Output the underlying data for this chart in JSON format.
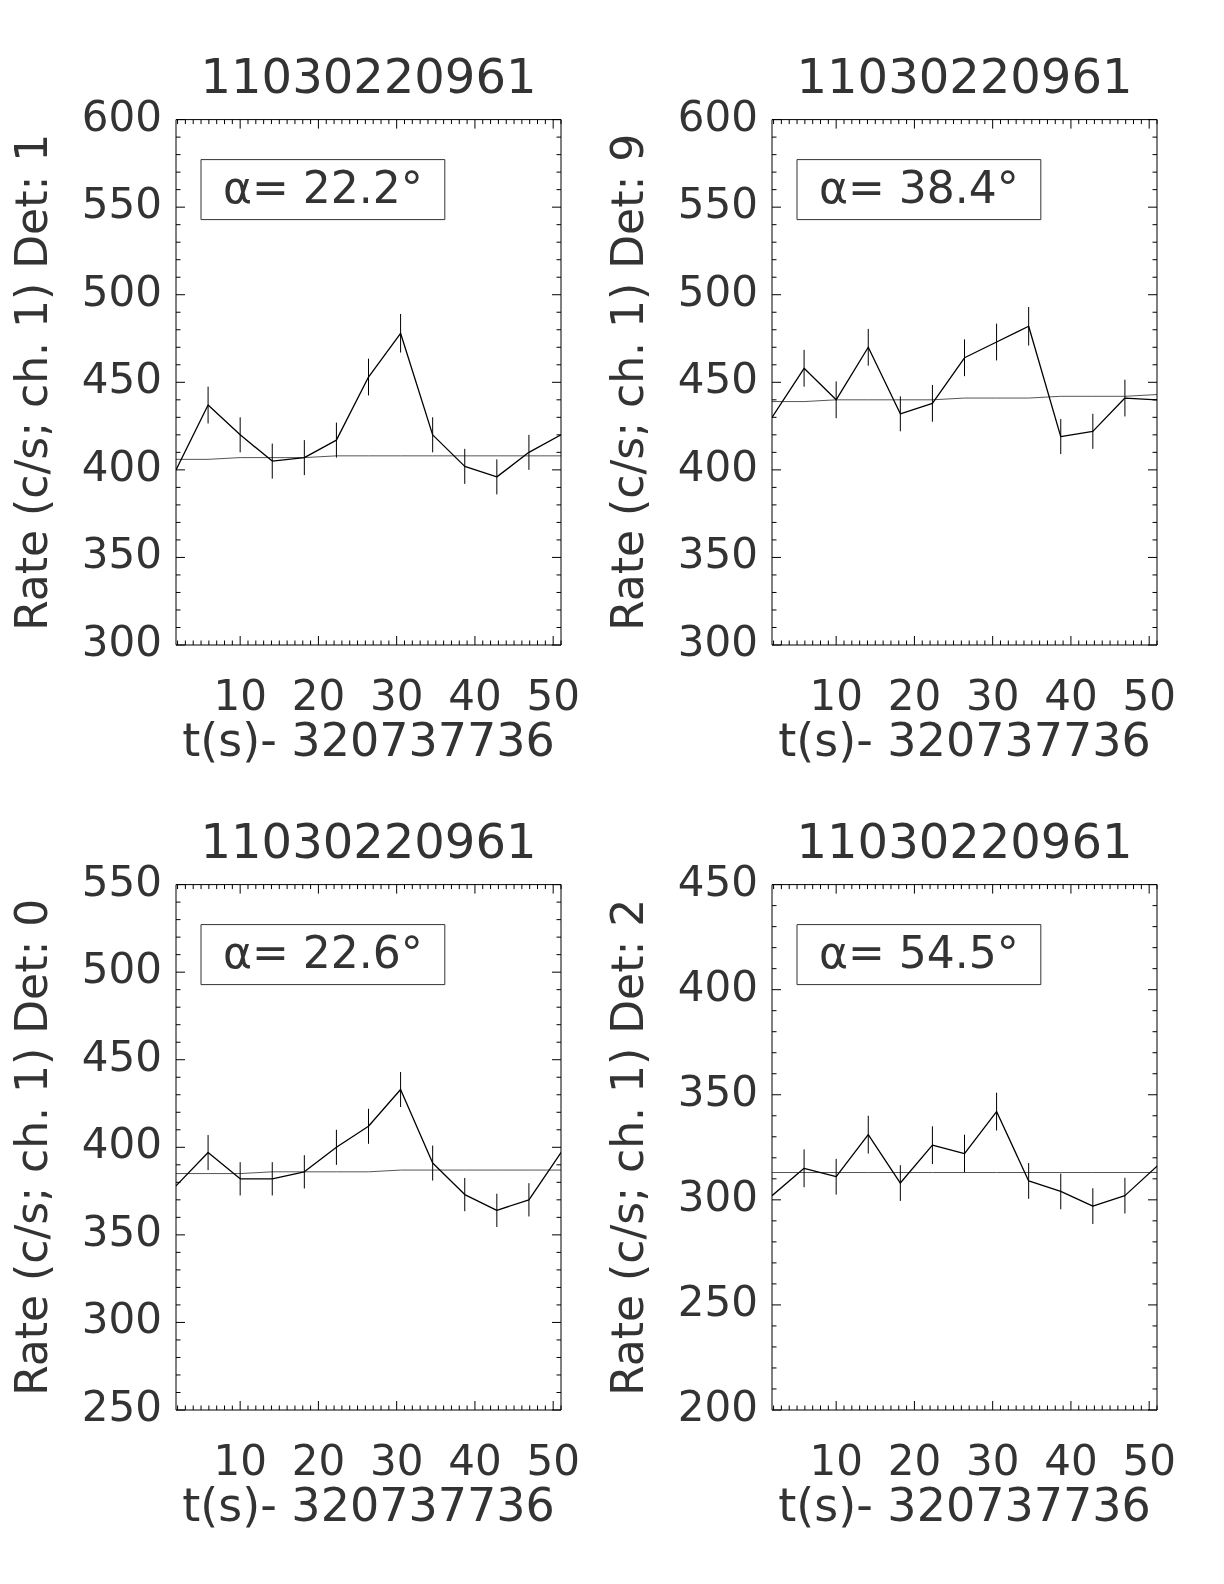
{
  "chart_data": [
    {
      "type": "line",
      "title": "11030220961",
      "xlabel": "t(s)- 320737736",
      "ylabel": "Rate (c/s; ch. 1) Det: 1",
      "annotations": [
        "α= 22.2°"
      ],
      "x": [
        1.8,
        5.9,
        10.0,
        14.1,
        18.2,
        22.3,
        26.4,
        30.5,
        34.6,
        38.7,
        42.8,
        46.9,
        51.0
      ],
      "xlim": [
        1.8,
        51.0
      ],
      "xticks": [
        {
          "value": 2,
          "label": null
        },
        {
          "value": 3,
          "label": null
        },
        {
          "value": 4,
          "label": null
        },
        {
          "value": 5,
          "label": null
        },
        {
          "value": 6,
          "label": null
        },
        {
          "value": 7,
          "label": null
        },
        {
          "value": 8,
          "label": null
        },
        {
          "value": 9,
          "label": null
        },
        10,
        {
          "value": 11,
          "label": null
        },
        {
          "value": 12,
          "label": null
        },
        {
          "value": 13,
          "label": null
        },
        {
          "value": 14,
          "label": null
        },
        {
          "value": 15,
          "label": null
        },
        {
          "value": 16,
          "label": null
        },
        {
          "value": 17,
          "label": null
        },
        {
          "value": 18,
          "label": null
        },
        {
          "value": 19,
          "label": null
        },
        20,
        {
          "value": 21,
          "label": null
        },
        {
          "value": 22,
          "label": null
        },
        {
          "value": 23,
          "label": null
        },
        {
          "value": 24,
          "label": null
        },
        {
          "value": 25,
          "label": null
        },
        {
          "value": 26,
          "label": null
        },
        {
          "value": 27,
          "label": null
        },
        {
          "value": 28,
          "label": null
        },
        {
          "value": 29,
          "label": null
        },
        30,
        {
          "value": 31,
          "label": null
        },
        {
          "value": 32,
          "label": null
        },
        {
          "value": 33,
          "label": null
        },
        {
          "value": 34,
          "label": null
        },
        {
          "value": 35,
          "label": null
        },
        {
          "value": 36,
          "label": null
        },
        {
          "value": 37,
          "label": null
        },
        {
          "value": 38,
          "label": null
        },
        {
          "value": 39,
          "label": null
        },
        40,
        {
          "value": 41,
          "label": null
        },
        {
          "value": 42,
          "label": null
        },
        {
          "value": 43,
          "label": null
        },
        {
          "value": 44,
          "label": null
        },
        {
          "value": 45,
          "label": null
        },
        {
          "value": 46,
          "label": null
        },
        {
          "value": 47,
          "label": null
        },
        {
          "value": 48,
          "label": null
        },
        {
          "value": 49,
          "label": null
        },
        50,
        {
          "value": 51,
          "label": null
        }
      ],
      "ylim": [
        300,
        600
      ],
      "yticks": [
        300,
        {
          "value": 310,
          "label": null
        },
        {
          "value": 320,
          "label": null
        },
        {
          "value": 330,
          "label": null
        },
        {
          "value": 340,
          "label": null
        },
        350,
        {
          "value": 360,
          "label": null
        },
        {
          "value": 370,
          "label": null
        },
        {
          "value": 380,
          "label": null
        },
        {
          "value": 390,
          "label": null
        },
        400,
        {
          "value": 410,
          "label": null
        },
        {
          "value": 420,
          "label": null
        },
        {
          "value": 430,
          "label": null
        },
        {
          "value": 440,
          "label": null
        },
        450,
        {
          "value": 460,
          "label": null
        },
        {
          "value": 470,
          "label": null
        },
        {
          "value": 480,
          "label": null
        },
        {
          "value": 490,
          "label": null
        },
        500,
        {
          "value": 510,
          "label": null
        },
        {
          "value": 520,
          "label": null
        },
        {
          "value": 530,
          "label": null
        },
        {
          "value": 540,
          "label": null
        },
        550,
        {
          "value": 560,
          "label": null
        },
        {
          "value": 570,
          "label": null
        },
        {
          "value": 580,
          "label": null
        },
        {
          "value": 590,
          "label": null
        },
        600
      ],
      "series": [
        {
          "color": "#000000",
          "values": [
            400,
            437,
            420,
            405,
            407,
            417,
            453,
            478,
            420,
            402,
            396,
            410,
            420
          ],
          "errors": [
            null,
            10.5,
            10,
            10,
            10,
            10,
            10.5,
            11,
            10,
            10,
            10,
            10,
            null
          ]
        },
        {
          "color": "#555555",
          "values": [
            406,
            406,
            407,
            407,
            407,
            408,
            408,
            408,
            408,
            408,
            408,
            408,
            408
          ]
        }
      ]
    },
    {
      "type": "line",
      "title": "11030220961",
      "xlabel": "t(s)- 320737736",
      "ylabel": "Rate (c/s; ch. 1) Det: 9",
      "annotations": [
        "α= 38.4°"
      ],
      "x": [
        1.8,
        5.9,
        10.0,
        14.1,
        18.2,
        22.3,
        26.4,
        30.5,
        34.6,
        38.7,
        42.8,
        46.9,
        51.0
      ],
      "xlim": [
        1.8,
        51.0
      ],
      "xticks": [
        {
          "value": 2,
          "label": null
        },
        {
          "value": 3,
          "label": null
        },
        {
          "value": 4,
          "label": null
        },
        {
          "value": 5,
          "label": null
        },
        {
          "value": 6,
          "label": null
        },
        {
          "value": 7,
          "label": null
        },
        {
          "value": 8,
          "label": null
        },
        {
          "value": 9,
          "label": null
        },
        10,
        {
          "value": 11,
          "label": null
        },
        {
          "value": 12,
          "label": null
        },
        {
          "value": 13,
          "label": null
        },
        {
          "value": 14,
          "label": null
        },
        {
          "value": 15,
          "label": null
        },
        {
          "value": 16,
          "label": null
        },
        {
          "value": 17,
          "label": null
        },
        {
          "value": 18,
          "label": null
        },
        {
          "value": 19,
          "label": null
        },
        20,
        {
          "value": 21,
          "label": null
        },
        {
          "value": 22,
          "label": null
        },
        {
          "value": 23,
          "label": null
        },
        {
          "value": 24,
          "label": null
        },
        {
          "value": 25,
          "label": null
        },
        {
          "value": 26,
          "label": null
        },
        {
          "value": 27,
          "label": null
        },
        {
          "value": 28,
          "label": null
        },
        {
          "value": 29,
          "label": null
        },
        30,
        {
          "value": 31,
          "label": null
        },
        {
          "value": 32,
          "label": null
        },
        {
          "value": 33,
          "label": null
        },
        {
          "value": 34,
          "label": null
        },
        {
          "value": 35,
          "label": null
        },
        {
          "value": 36,
          "label": null
        },
        {
          "value": 37,
          "label": null
        },
        {
          "value": 38,
          "label": null
        },
        {
          "value": 39,
          "label": null
        },
        40,
        {
          "value": 41,
          "label": null
        },
        {
          "value": 42,
          "label": null
        },
        {
          "value": 43,
          "label": null
        },
        {
          "value": 44,
          "label": null
        },
        {
          "value": 45,
          "label": null
        },
        {
          "value": 46,
          "label": null
        },
        {
          "value": 47,
          "label": null
        },
        {
          "value": 48,
          "label": null
        },
        {
          "value": 49,
          "label": null
        },
        50,
        {
          "value": 51,
          "label": null
        }
      ],
      "ylim": [
        300,
        600
      ],
      "yticks": [
        300,
        {
          "value": 310,
          "label": null
        },
        {
          "value": 320,
          "label": null
        },
        {
          "value": 330,
          "label": null
        },
        {
          "value": 340,
          "label": null
        },
        350,
        {
          "value": 360,
          "label": null
        },
        {
          "value": 370,
          "label": null
        },
        {
          "value": 380,
          "label": null
        },
        {
          "value": 390,
          "label": null
        },
        400,
        {
          "value": 410,
          "label": null
        },
        {
          "value": 420,
          "label": null
        },
        {
          "value": 430,
          "label": null
        },
        {
          "value": 440,
          "label": null
        },
        450,
        {
          "value": 460,
          "label": null
        },
        {
          "value": 470,
          "label": null
        },
        {
          "value": 480,
          "label": null
        },
        {
          "value": 490,
          "label": null
        },
        500,
        {
          "value": 510,
          "label": null
        },
        {
          "value": 520,
          "label": null
        },
        {
          "value": 530,
          "label": null
        },
        {
          "value": 540,
          "label": null
        },
        550,
        {
          "value": 560,
          "label": null
        },
        {
          "value": 570,
          "label": null
        },
        {
          "value": 580,
          "label": null
        },
        {
          "value": 590,
          "label": null
        },
        600
      ],
      "series": [
        {
          "color": "#000000",
          "values": [
            430,
            458,
            440,
            470,
            432,
            438,
            464,
            473,
            482,
            419,
            422,
            441,
            440
          ],
          "errors": [
            null,
            10.5,
            10.5,
            10.5,
            10,
            10.5,
            10.5,
            10.5,
            11,
            10,
            10,
            10.5,
            null
          ]
        },
        {
          "color": "#555555",
          "values": [
            439,
            439,
            440,
            440,
            440,
            440,
            441,
            441,
            441,
            442,
            442,
            442,
            443
          ]
        }
      ]
    },
    {
      "type": "line",
      "title": "11030220961",
      "xlabel": "t(s)- 320737736",
      "ylabel": "Rate (c/s; ch. 1) Det: 0",
      "annotations": [
        "α= 22.6°"
      ],
      "x": [
        1.8,
        5.9,
        10.0,
        14.1,
        18.2,
        22.3,
        26.4,
        30.5,
        34.6,
        38.7,
        42.8,
        46.9,
        51.0
      ],
      "xlim": [
        1.8,
        51.0
      ],
      "xticks": [
        {
          "value": 2,
          "label": null
        },
        {
          "value": 3,
          "label": null
        },
        {
          "value": 4,
          "label": null
        },
        {
          "value": 5,
          "label": null
        },
        {
          "value": 6,
          "label": null
        },
        {
          "value": 7,
          "label": null
        },
        {
          "value": 8,
          "label": null
        },
        {
          "value": 9,
          "label": null
        },
        10,
        {
          "value": 11,
          "label": null
        },
        {
          "value": 12,
          "label": null
        },
        {
          "value": 13,
          "label": null
        },
        {
          "value": 14,
          "label": null
        },
        {
          "value": 15,
          "label": null
        },
        {
          "value": 16,
          "label": null
        },
        {
          "value": 17,
          "label": null
        },
        {
          "value": 18,
          "label": null
        },
        {
          "value": 19,
          "label": null
        },
        20,
        {
          "value": 21,
          "label": null
        },
        {
          "value": 22,
          "label": null
        },
        {
          "value": 23,
          "label": null
        },
        {
          "value": 24,
          "label": null
        },
        {
          "value": 25,
          "label": null
        },
        {
          "value": 26,
          "label": null
        },
        {
          "value": 27,
          "label": null
        },
        {
          "value": 28,
          "label": null
        },
        {
          "value": 29,
          "label": null
        },
        30,
        {
          "value": 31,
          "label": null
        },
        {
          "value": 32,
          "label": null
        },
        {
          "value": 33,
          "label": null
        },
        {
          "value": 34,
          "label": null
        },
        {
          "value": 35,
          "label": null
        },
        {
          "value": 36,
          "label": null
        },
        {
          "value": 37,
          "label": null
        },
        {
          "value": 38,
          "label": null
        },
        {
          "value": 39,
          "label": null
        },
        40,
        {
          "value": 41,
          "label": null
        },
        {
          "value": 42,
          "label": null
        },
        {
          "value": 43,
          "label": null
        },
        {
          "value": 44,
          "label": null
        },
        {
          "value": 45,
          "label": null
        },
        {
          "value": 46,
          "label": null
        },
        {
          "value": 47,
          "label": null
        },
        {
          "value": 48,
          "label": null
        },
        {
          "value": 49,
          "label": null
        },
        50,
        {
          "value": 51,
          "label": null
        }
      ],
      "ylim": [
        250,
        550
      ],
      "yticks": [
        250,
        {
          "value": 260,
          "label": null
        },
        {
          "value": 270,
          "label": null
        },
        {
          "value": 280,
          "label": null
        },
        {
          "value": 290,
          "label": null
        },
        300,
        {
          "value": 310,
          "label": null
        },
        {
          "value": 320,
          "label": null
        },
        {
          "value": 330,
          "label": null
        },
        {
          "value": 340,
          "label": null
        },
        350,
        {
          "value": 360,
          "label": null
        },
        {
          "value": 370,
          "label": null
        },
        {
          "value": 380,
          "label": null
        },
        {
          "value": 390,
          "label": null
        },
        400,
        {
          "value": 410,
          "label": null
        },
        {
          "value": 420,
          "label": null
        },
        {
          "value": 430,
          "label": null
        },
        {
          "value": 440,
          "label": null
        },
        450,
        {
          "value": 460,
          "label": null
        },
        {
          "value": 470,
          "label": null
        },
        {
          "value": 480,
          "label": null
        },
        {
          "value": 490,
          "label": null
        },
        500,
        {
          "value": 510,
          "label": null
        },
        {
          "value": 520,
          "label": null
        },
        {
          "value": 530,
          "label": null
        },
        {
          "value": 540,
          "label": null
        },
        550
      ],
      "series": [
        {
          "color": "#000000",
          "values": [
            378,
            397,
            382,
            382,
            386,
            400,
            412,
            433,
            391,
            373,
            364,
            370,
            397
          ],
          "errors": [
            null,
            10,
            9.5,
            9.5,
            9.5,
            10,
            10,
            10,
            10,
            9.5,
            9.5,
            9.5,
            null
          ]
        },
        {
          "color": "#555555",
          "values": [
            385,
            385,
            385,
            386,
            386,
            386,
            386,
            387,
            387,
            387,
            387,
            387,
            387
          ]
        }
      ]
    },
    {
      "type": "line",
      "title": "11030220961",
      "xlabel": "t(s)- 320737736",
      "ylabel": "Rate (c/s; ch. 1) Det: 2",
      "annotations": [
        "α= 54.5°"
      ],
      "x": [
        1.8,
        5.9,
        10.0,
        14.1,
        18.2,
        22.3,
        26.4,
        30.5,
        34.6,
        38.7,
        42.8,
        46.9,
        51.0
      ],
      "xlim": [
        1.8,
        51.0
      ],
      "xticks": [
        {
          "value": 2,
          "label": null
        },
        {
          "value": 3,
          "label": null
        },
        {
          "value": 4,
          "label": null
        },
        {
          "value": 5,
          "label": null
        },
        {
          "value": 6,
          "label": null
        },
        {
          "value": 7,
          "label": null
        },
        {
          "value": 8,
          "label": null
        },
        {
          "value": 9,
          "label": null
        },
        10,
        {
          "value": 11,
          "label": null
        },
        {
          "value": 12,
          "label": null
        },
        {
          "value": 13,
          "label": null
        },
        {
          "value": 14,
          "label": null
        },
        {
          "value": 15,
          "label": null
        },
        {
          "value": 16,
          "label": null
        },
        {
          "value": 17,
          "label": null
        },
        {
          "value": 18,
          "label": null
        },
        {
          "value": 19,
          "label": null
        },
        20,
        {
          "value": 21,
          "label": null
        },
        {
          "value": 22,
          "label": null
        },
        {
          "value": 23,
          "label": null
        },
        {
          "value": 24,
          "label": null
        },
        {
          "value": 25,
          "label": null
        },
        {
          "value": 26,
          "label": null
        },
        {
          "value": 27,
          "label": null
        },
        {
          "value": 28,
          "label": null
        },
        {
          "value": 29,
          "label": null
        },
        30,
        {
          "value": 31,
          "label": null
        },
        {
          "value": 32,
          "label": null
        },
        {
          "value": 33,
          "label": null
        },
        {
          "value": 34,
          "label": null
        },
        {
          "value": 35,
          "label": null
        },
        {
          "value": 36,
          "label": null
        },
        {
          "value": 37,
          "label": null
        },
        {
          "value": 38,
          "label": null
        },
        {
          "value": 39,
          "label": null
        },
        40,
        {
          "value": 41,
          "label": null
        },
        {
          "value": 42,
          "label": null
        },
        {
          "value": 43,
          "label": null
        },
        {
          "value": 44,
          "label": null
        },
        {
          "value": 45,
          "label": null
        },
        {
          "value": 46,
          "label": null
        },
        {
          "value": 47,
          "label": null
        },
        {
          "value": 48,
          "label": null
        },
        {
          "value": 49,
          "label": null
        },
        50,
        {
          "value": 51,
          "label": null
        }
      ],
      "ylim": [
        200,
        450
      ],
      "yticks": [
        200,
        {
          "value": 210,
          "label": null
        },
        {
          "value": 220,
          "label": null
        },
        {
          "value": 230,
          "label": null
        },
        {
          "value": 240,
          "label": null
        },
        250,
        {
          "value": 260,
          "label": null
        },
        {
          "value": 270,
          "label": null
        },
        {
          "value": 280,
          "label": null
        },
        {
          "value": 290,
          "label": null
        },
        300,
        {
          "value": 310,
          "label": null
        },
        {
          "value": 320,
          "label": null
        },
        {
          "value": 330,
          "label": null
        },
        {
          "value": 340,
          "label": null
        },
        350,
        {
          "value": 360,
          "label": null
        },
        {
          "value": 370,
          "label": null
        },
        {
          "value": 380,
          "label": null
        },
        {
          "value": 390,
          "label": null
        },
        400,
        {
          "value": 410,
          "label": null
        },
        {
          "value": 420,
          "label": null
        },
        {
          "value": 430,
          "label": null
        },
        {
          "value": 440,
          "label": null
        },
        450
      ],
      "series": [
        {
          "color": "#000000",
          "values": [
            302,
            315,
            311,
            331,
            308,
            326,
            322,
            342,
            309,
            304,
            297,
            302,
            316
          ],
          "errors": [
            null,
            9,
            8.5,
            9,
            8.5,
            9,
            9,
            9,
            8.5,
            8.5,
            8.5,
            8.5,
            null
          ]
        },
        {
          "color": "#555555",
          "values": [
            313,
            313,
            313,
            313,
            313,
            313,
            313,
            313,
            313,
            313,
            313,
            313,
            313
          ]
        }
      ]
    }
  ]
}
